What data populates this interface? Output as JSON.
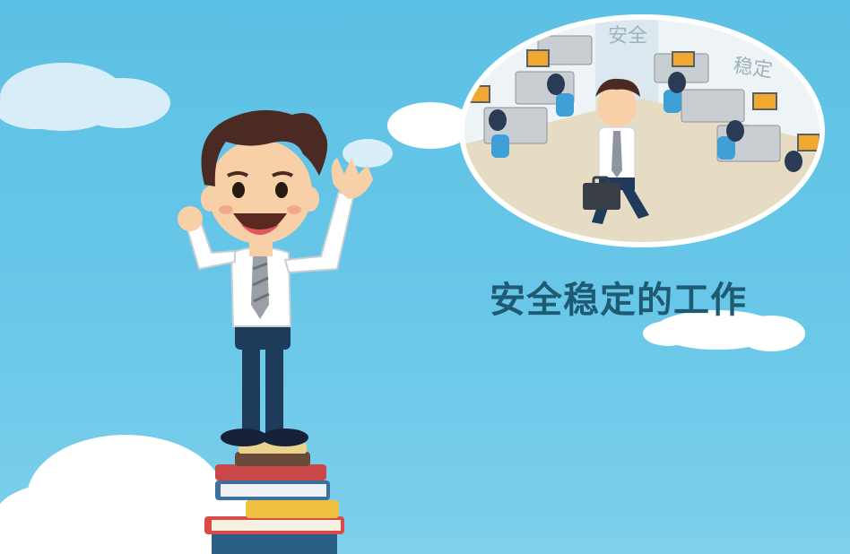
{
  "headline": "安全稳定的工作",
  "office_signs": [
    "安全",
    "稳定"
  ],
  "colors": {
    "sky": "#5cc0e4",
    "cloud": "#ffffff",
    "headline": "#1f5a73",
    "hair": "#4a2a22",
    "skin": "#f7d0a8",
    "shirt": "#ffffff",
    "tie": "#9aa0a6",
    "trousers": "#1e3b5c",
    "floor": "#e6dcc4"
  },
  "books_in_stack": 6
}
